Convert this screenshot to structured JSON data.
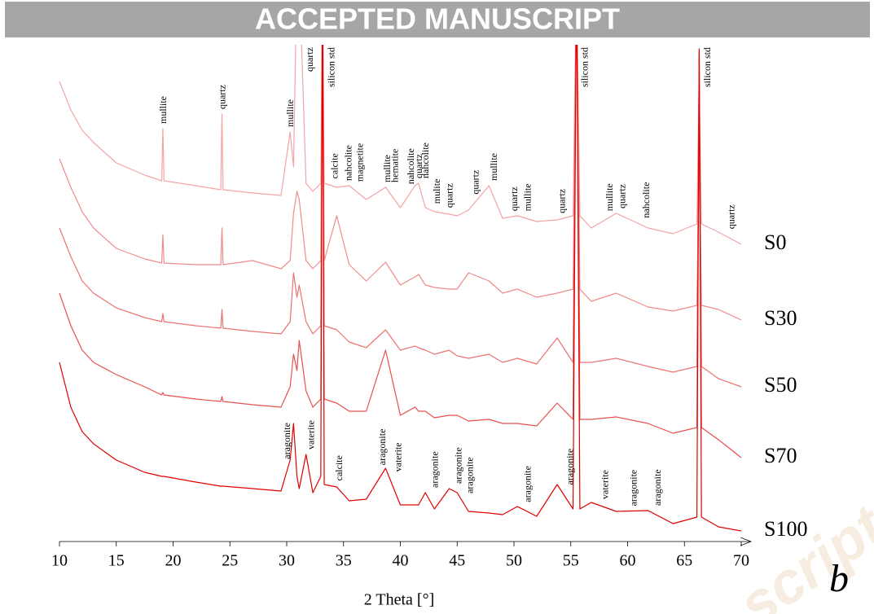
{
  "banner": "ACCEPTED MANUSCRIPT",
  "watermark": "script",
  "chart_data": {
    "type": "line",
    "x_label": "2 Theta [°]",
    "panel_label": "b",
    "xlim": [
      10,
      70
    ],
    "xticks": [
      10,
      15,
      20,
      25,
      30,
      35,
      40,
      45,
      50,
      55,
      60,
      65,
      70
    ],
    "x": [
      10,
      11,
      12,
      13,
      15,
      17.5,
      19,
      19.1,
      19.2,
      22,
      24.2,
      24.3,
      24.4,
      27,
      29.5,
      30.3,
      30.6,
      30.9,
      31.1,
      31.7,
      32.3,
      33,
      33.15,
      33.3,
      34.4,
      35.5,
      37,
      38.7,
      40,
      41.3,
      41.6,
      42.2,
      43,
      44.3,
      45,
      46,
      47.8,
      49,
      50.3,
      52,
      53.8,
      55.2,
      55.5,
      55.8,
      56.8,
      59,
      61.8,
      64,
      66.1,
      66.3,
      66.5,
      68,
      70
    ],
    "series": [
      {
        "name": "S0",
        "color": "#f4a3a3",
        "values": [
          565,
          530,
          505,
          490,
          465,
          450,
          443,
          507,
          443,
          437,
          432,
          525,
          432,
          428,
          425,
          503,
          460,
          700,
          700,
          440,
          430,
          440,
          700,
          440,
          435,
          437,
          420,
          435,
          410,
          437,
          440,
          410,
          405,
          402,
          400,
          407,
          437,
          397,
          400,
          393,
          395,
          400,
          700,
          400,
          385,
          403,
          385,
          378,
          390,
          565,
          390,
          380,
          365
        ],
        "annotations": [
          {
            "text": "mullite",
            "x": 19.1
          },
          {
            "text": "quartz",
            "x": 24.3
          },
          {
            "text": "mullite",
            "x": 30.3
          },
          {
            "text": "quartz",
            "x": 32.0
          },
          {
            "text": "silicon std",
            "x": 33.9
          },
          {
            "text": "calcite",
            "x": 34.2
          },
          {
            "text": "nahcolite",
            "x": 35.4
          },
          {
            "text": "magnetite",
            "x": 36.4
          },
          {
            "text": "mullite",
            "x": 38.8
          },
          {
            "text": "hematite",
            "x": 39.5
          },
          {
            "text": "nahcolite",
            "x": 40.9
          },
          {
            "text": "quartz",
            "x": 41.6
          },
          {
            "text": "nahcolite",
            "x": 42.2
          },
          {
            "text": "mulite",
            "x": 43.2
          },
          {
            "text": "quartz",
            "x": 44.3
          },
          {
            "text": "quartz",
            "x": 46.6
          },
          {
            "text": "mullite",
            "x": 48.2
          },
          {
            "text": "quartz",
            "x": 50.0
          },
          {
            "text": "mullite",
            "x": 51.2
          },
          {
            "text": "quartz",
            "x": 54.2
          },
          {
            "text": "silicon std",
            "x": 56.2
          },
          {
            "text": "mullite",
            "x": 58.4
          },
          {
            "text": "quartz",
            "x": 59.5
          },
          {
            "text": "nahcolite",
            "x": 61.6
          },
          {
            "text": "silicon std",
            "x": 67.0
          },
          {
            "text": "quartz",
            "x": 69.1
          }
        ]
      },
      {
        "name": "S30",
        "color": "#f08b8b",
        "values": [
          470,
          435,
          405,
          385,
          360,
          347,
          342,
          377,
          342,
          340,
          340,
          385,
          340,
          345,
          335,
          345,
          403,
          430,
          420,
          345,
          335,
          345,
          700,
          345,
          400,
          340,
          320,
          343,
          315,
          325,
          328,
          315,
          312,
          310,
          310,
          330,
          320,
          305,
          310,
          300,
          305,
          310,
          700,
          310,
          295,
          305,
          288,
          283,
          290,
          470,
          290,
          285,
          272
        ]
      },
      {
        "name": "S50",
        "color": "#ec7272",
        "values": [
          385,
          350,
          320,
          305,
          287,
          275,
          270,
          280,
          270,
          265,
          262,
          285,
          262,
          258,
          255,
          270,
          330,
          300,
          315,
          270,
          255,
          265,
          700,
          265,
          260,
          245,
          238,
          260,
          235,
          240,
          238,
          235,
          230,
          235,
          228,
          225,
          230,
          220,
          225,
          218,
          250,
          220,
          700,
          220,
          220,
          225,
          215,
          208,
          215,
          600,
          215,
          200,
          190
        ]
      },
      {
        "name": "S70",
        "color": "#e84f4f",
        "values": [
          305,
          265,
          235,
          220,
          205,
          190,
          180,
          183,
          180,
          175,
          172,
          178,
          172,
          168,
          165,
          190,
          230,
          210,
          247,
          185,
          165,
          175,
          700,
          175,
          170,
          160,
          160,
          235,
          155,
          165,
          160,
          160,
          152,
          155,
          155,
          148,
          150,
          145,
          145,
          142,
          170,
          150,
          700,
          150,
          150,
          153,
          145,
          133,
          140,
          600,
          140,
          125,
          103
        ]
      },
      {
        "name": "S100",
        "color": "#e00000",
        "values": [
          220,
          165,
          135,
          120,
          100,
          85,
          80,
          80,
          80,
          73,
          68,
          68,
          68,
          65,
          62,
          100,
          145,
          80,
          65,
          107,
          60,
          80,
          700,
          70,
          67,
          50,
          52,
          90,
          45,
          45,
          45,
          60,
          40,
          65,
          60,
          37,
          35,
          33,
          43,
          31,
          70,
          40,
          700,
          40,
          48,
          37,
          38,
          22,
          30,
          605,
          30,
          18,
          13
        ],
        "annotations": [
          {
            "text": "aragonite",
            "x": 30.0
          },
          {
            "text": "vaterite",
            "x": 32.1
          },
          {
            "text": "calcite",
            "x": 34.6
          },
          {
            "text": "aragonite",
            "x": 38.4
          },
          {
            "text": "vaterite",
            "x": 39.8
          },
          {
            "text": "aragonite",
            "x": 43.0
          },
          {
            "text": "aragonite",
            "x": 45.1
          },
          {
            "text": "aragonite",
            "x": 46.1
          },
          {
            "text": "aragonite",
            "x": 51.2
          },
          {
            "text": "aragonite",
            "x": 54.9
          },
          {
            "text": "vaterite",
            "x": 58.0
          },
          {
            "text": "aragonite",
            "x": 60.5
          },
          {
            "text": "aragonite",
            "x": 62.6
          }
        ]
      }
    ]
  }
}
